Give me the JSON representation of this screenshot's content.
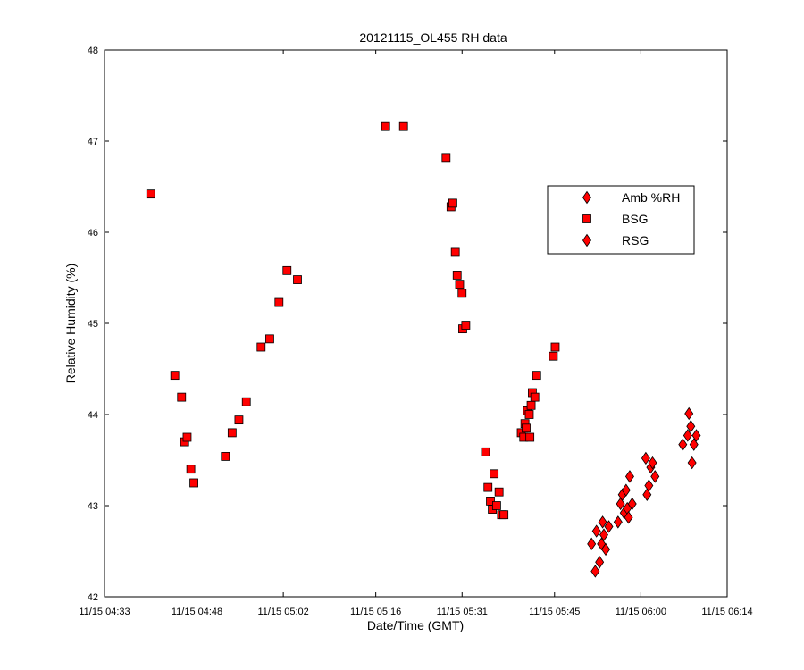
{
  "chart_data": {
    "type": "scatter",
    "title": "20121115_OL455 RH data",
    "xlabel": "Date/Time (GMT)",
    "ylabel": "Relative Humidity (%)",
    "xlim": [
      0,
      101
    ],
    "ylim": [
      42,
      48
    ],
    "x_unit": "minutes after 11/15 04:33",
    "x_ticks": [
      0,
      15,
      29,
      44,
      58,
      73,
      87,
      101
    ],
    "x_tick_labels": [
      "11/15 04:33",
      "11/15 04:48",
      "11/15 05:02",
      "11/15 05:16",
      "11/15 05:31",
      "11/15 05:45",
      "11/15 06:00",
      "11/15 06:14"
    ],
    "y_ticks": [
      42,
      43,
      44,
      45,
      46,
      47,
      48
    ],
    "y_tick_labels": [
      "42",
      "43",
      "44",
      "45",
      "46",
      "47",
      "48"
    ],
    "grid": false,
    "legend_position": "right",
    "series": [
      {
        "name": "Amb %RH",
        "marker": "diamond",
        "color": "#ff0000",
        "points": []
      },
      {
        "name": "BSG",
        "marker": "square",
        "color": "#ff0000",
        "points": [
          [
            7.5,
            46.42
          ],
          [
            11.4,
            44.43
          ],
          [
            12.5,
            44.19
          ],
          [
            13.0,
            43.7
          ],
          [
            13.4,
            43.75
          ],
          [
            14.0,
            43.4
          ],
          [
            14.5,
            43.25
          ],
          [
            19.6,
            43.54
          ],
          [
            20.7,
            43.8
          ],
          [
            21.8,
            43.94
          ],
          [
            23.0,
            44.14
          ],
          [
            25.4,
            44.74
          ],
          [
            26.8,
            44.83
          ],
          [
            28.3,
            45.23
          ],
          [
            29.6,
            45.58
          ],
          [
            31.3,
            45.48
          ],
          [
            45.6,
            47.16
          ],
          [
            48.5,
            47.16
          ],
          [
            55.4,
            46.82
          ],
          [
            56.2,
            46.28
          ],
          [
            56.5,
            46.32
          ],
          [
            56.9,
            45.78
          ],
          [
            57.2,
            45.53
          ],
          [
            57.6,
            45.43
          ],
          [
            58.0,
            45.33
          ],
          [
            58.1,
            44.94
          ],
          [
            58.6,
            44.98
          ],
          [
            61.8,
            43.59
          ],
          [
            62.2,
            43.2
          ],
          [
            62.6,
            43.05
          ],
          [
            62.9,
            42.96
          ],
          [
            63.2,
            43.35
          ],
          [
            63.6,
            43.0
          ],
          [
            64.0,
            43.15
          ],
          [
            64.4,
            42.9
          ],
          [
            64.8,
            42.9
          ],
          [
            67.6,
            43.8
          ],
          [
            68.0,
            43.75
          ],
          [
            68.2,
            43.9
          ],
          [
            68.4,
            43.85
          ],
          [
            68.6,
            44.04
          ],
          [
            68.9,
            44.0
          ],
          [
            69.0,
            43.75
          ],
          [
            69.2,
            44.1
          ],
          [
            69.4,
            44.24
          ],
          [
            69.8,
            44.19
          ],
          [
            70.1,
            44.43
          ],
          [
            72.8,
            44.64
          ],
          [
            73.1,
            44.74
          ]
        ]
      },
      {
        "name": "RSG",
        "marker": "diamond",
        "color": "#ff0000",
        "points": [
          [
            79.0,
            42.58
          ],
          [
            79.6,
            42.28
          ],
          [
            79.8,
            42.72
          ],
          [
            80.3,
            42.38
          ],
          [
            80.6,
            42.58
          ],
          [
            80.8,
            42.82
          ],
          [
            81.0,
            42.68
          ],
          [
            81.3,
            42.52
          ],
          [
            81.8,
            42.77
          ],
          [
            83.3,
            42.82
          ],
          [
            83.7,
            43.02
          ],
          [
            84.0,
            43.12
          ],
          [
            84.3,
            42.92
          ],
          [
            84.6,
            43.17
          ],
          [
            84.8,
            42.97
          ],
          [
            85.0,
            42.87
          ],
          [
            85.2,
            43.32
          ],
          [
            85.6,
            43.02
          ],
          [
            87.8,
            43.52
          ],
          [
            88.0,
            43.12
          ],
          [
            88.3,
            43.22
          ],
          [
            88.6,
            43.42
          ],
          [
            88.9,
            43.47
          ],
          [
            89.3,
            43.32
          ],
          [
            93.8,
            43.67
          ],
          [
            94.6,
            43.77
          ],
          [
            94.8,
            44.01
          ],
          [
            95.1,
            43.87
          ],
          [
            95.3,
            43.47
          ],
          [
            95.6,
            43.67
          ],
          [
            96.0,
            43.77
          ]
        ]
      }
    ]
  }
}
